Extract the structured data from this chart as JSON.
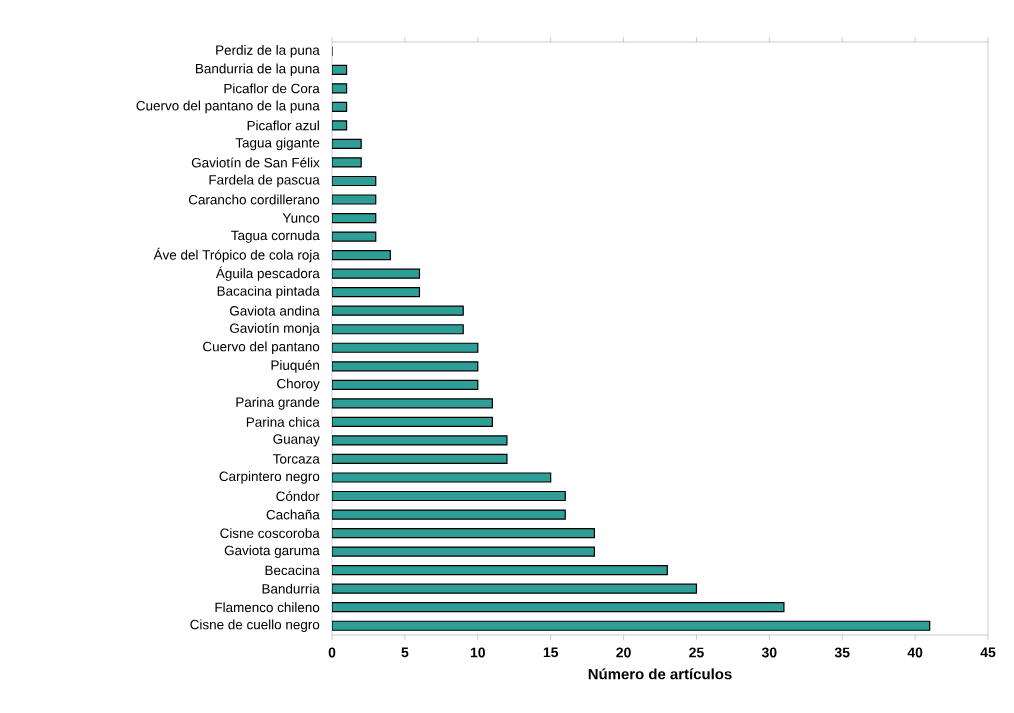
{
  "chart_data": {
    "type": "bar",
    "orientation": "horizontal",
    "xlabel": "Número de artículos",
    "categories": [
      "Perdiz de la puna",
      "Bandurria de la puna",
      "Picaflor de Cora",
      "Cuervo del pantano de la puna",
      "Picaflor azul",
      "Tagua gigante",
      "Gaviotín de San Félix",
      "Fardela de pascua",
      "Carancho cordillerano",
      "Yunco",
      "Tagua cornuda",
      "Áve del Trópico de cola roja",
      "Águila pescadora",
      "Bacacina pintada",
      "Gaviota andina",
      "Gaviotín monja",
      "Cuervo del pantano",
      "Piuquén",
      "Choroy",
      "Parina grande",
      "Parina chica",
      "Guanay",
      "Torcaza",
      "Carpintero negro",
      "Cóndor",
      "Cachaña",
      "Cisne coscoroba",
      "Gaviota garuma",
      "Becacina",
      "Bandurria",
      "Flamenco chileno",
      "Cisne de cuello negro"
    ],
    "values": [
      0,
      1,
      1,
      1,
      1,
      2,
      2,
      3,
      3,
      3,
      3,
      4,
      6,
      6,
      9,
      9,
      10,
      10,
      10,
      11,
      11,
      12,
      12,
      15,
      16,
      16,
      18,
      18,
      23,
      25,
      31,
      41
    ],
    "color": "#2e9e96",
    "xlim": [
      0,
      45
    ],
    "xticks": [
      0,
      5,
      10,
      15,
      20,
      25,
      30,
      35,
      40,
      45
    ],
    "grid": false
  }
}
